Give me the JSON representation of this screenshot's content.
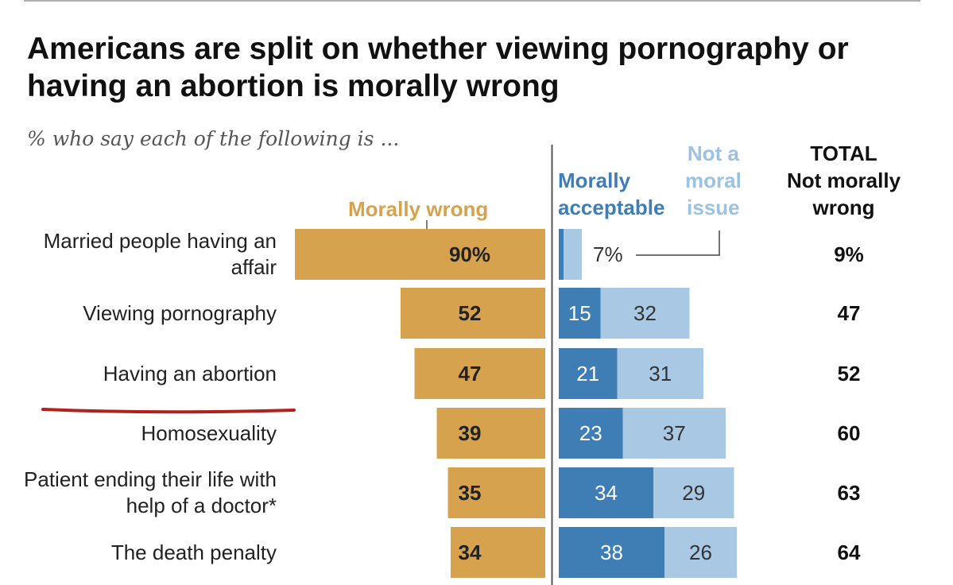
{
  "header": {
    "title": "Americans are split on whether viewing pornography or having an abortion is morally wrong",
    "subtitle": "% who say each of the following is ..."
  },
  "colors": {
    "morally_wrong": "#d6a24e",
    "morally_acceptable": "#3f7db5",
    "not_moral_issue": "#a8c8e4",
    "annotation_underline": "#b2221c"
  },
  "chart_data": {
    "type": "bar",
    "orientation": "horizontal-diverging",
    "title": "Americans are split on whether viewing pornography or having an abortion is morally wrong",
    "subtitle": "% who say each of the following is ...",
    "column_headers": {
      "morally_wrong": "Morally wrong",
      "morally_acceptable": "Morally acceptable",
      "not_moral_issue": "Not a moral issue",
      "total": "TOTAL Not morally wrong"
    },
    "categories": [
      "Married people having an affair",
      "Viewing pornography",
      "Having an abortion",
      "Homosexuality",
      "Patient ending their life with help of a doctor*",
      "The death penalty"
    ],
    "series": [
      {
        "name": "Morally wrong",
        "values": [
          90,
          52,
          47,
          39,
          35,
          34
        ],
        "labels": [
          "90%",
          "52",
          "47",
          "39",
          "35",
          "34"
        ]
      },
      {
        "name": "Morally acceptable",
        "values": [
          2,
          15,
          21,
          23,
          34,
          38
        ],
        "labels": [
          "",
          "15",
          "21",
          "23",
          "34",
          "38"
        ]
      },
      {
        "name": "Not a moral issue",
        "values": [
          7,
          32,
          31,
          37,
          29,
          26
        ],
        "labels": [
          "7%",
          "32",
          "31",
          "37",
          "29",
          "26"
        ]
      },
      {
        "name": "TOTAL Not morally wrong",
        "values": [
          9,
          47,
          52,
          60,
          63,
          64
        ],
        "labels": [
          "9%",
          "47",
          "52",
          "60",
          "63",
          "64"
        ]
      }
    ],
    "underlined_category": "Having an abortion"
  }
}
